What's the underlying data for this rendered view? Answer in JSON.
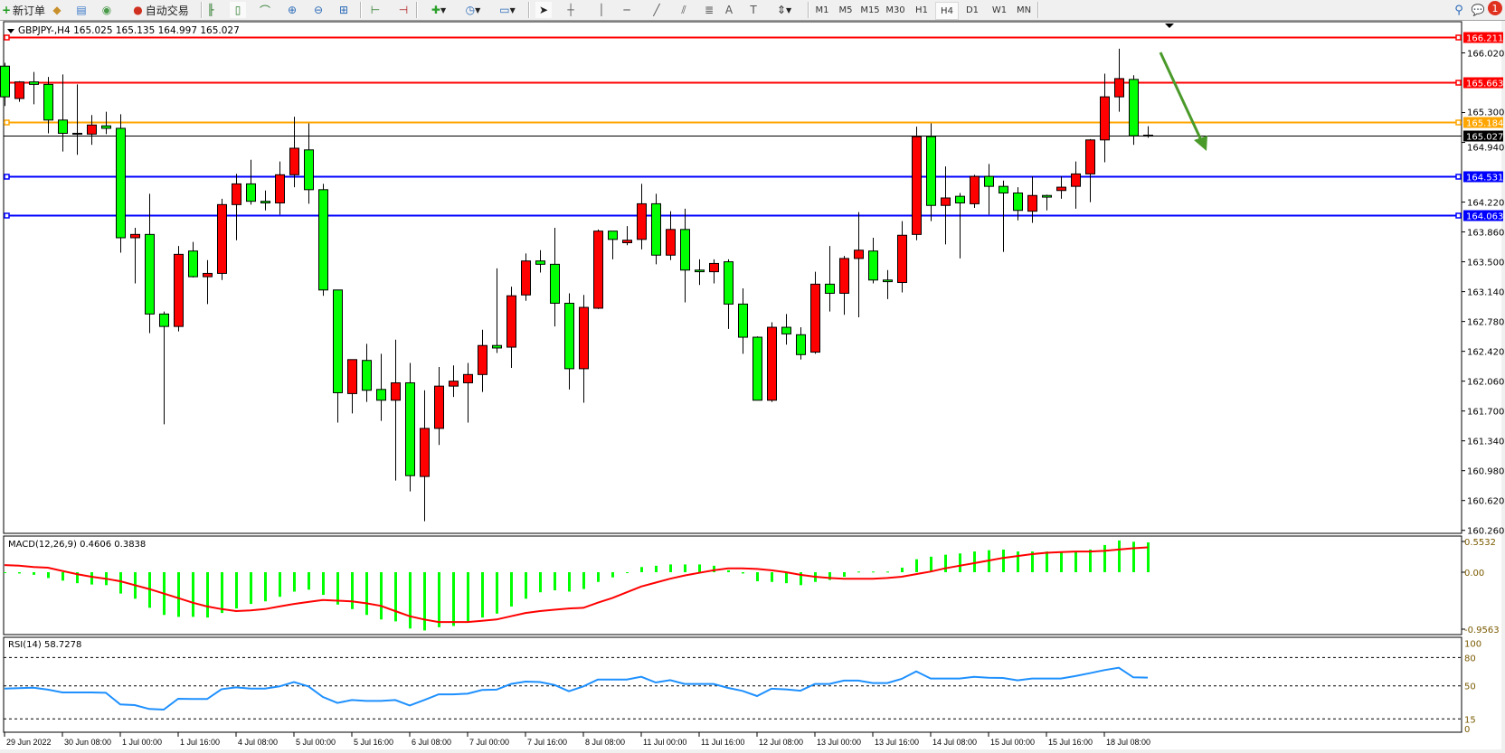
{
  "toolbar": {
    "new_order_label": "新订单",
    "auto_trading_label": "自动交易",
    "icons": [
      "new-order-icon",
      "market-watch-icon",
      "navigator-icon",
      "signals-icon",
      "auto-trading-icon",
      "bar-chart-icon",
      "candlestick-icon",
      "line-chart-icon",
      "zoom-in-icon",
      "zoom-out-icon",
      "tile-windows-icon",
      "chart-shift-icon",
      "auto-scroll-icon",
      "indicators-icon",
      "periods-icon",
      "templates-icon",
      "cursor-icon",
      "crosshair-icon",
      "vertical-line-icon",
      "horizontal-line-icon",
      "trendline-icon",
      "equidistant-channel-icon",
      "fibonacci-icon",
      "text-icon",
      "text-label-icon",
      "arrows-icon",
      "search-icon",
      "notifications-icon"
    ],
    "timeframes": [
      "M1",
      "M5",
      "M15",
      "M30",
      "H1",
      "H4",
      "D1",
      "W1",
      "MN"
    ],
    "active_timeframe": "H4",
    "notification_count": "1"
  },
  "chart_data": {
    "type": "candlestick",
    "title": "GBPJPY-,H4  165.025 165.135 164.997 165.027",
    "symbol": "GBPJPY-",
    "timeframe": "H4",
    "colors": {
      "bull": "#ff0000",
      "bear": "#00ff00",
      "background": "#ffffff"
    },
    "ylim": [
      160.26,
      166.33
    ],
    "y_ticks": [
      "166.020",
      "165.300",
      "164.940",
      "164.220",
      "163.860",
      "163.500",
      "163.140",
      "162.780",
      "162.420",
      "162.060",
      "161.700",
      "161.340",
      "160.980",
      "160.620",
      "160.260"
    ],
    "x_ticks": [
      {
        "label": "29 Jun 2022",
        "bar": 0
      },
      {
        "label": "30 Jun 08:00",
        "bar": 4
      },
      {
        "label": "1 Jul 00:00",
        "bar": 8
      },
      {
        "label": "1 Jul 16:00",
        "bar": 12
      },
      {
        "label": "4 Jul 08:00",
        "bar": 16
      },
      {
        "label": "5 Jul 00:00",
        "bar": 20
      },
      {
        "label": "5 Jul 16:00",
        "bar": 24
      },
      {
        "label": "6 Jul 08:00",
        "bar": 28
      },
      {
        "label": "7 Jul 00:00",
        "bar": 32
      },
      {
        "label": "7 Jul 16:00",
        "bar": 36
      },
      {
        "label": "8 Jul 08:00",
        "bar": 40
      },
      {
        "label": "11 Jul 00:00",
        "bar": 44
      },
      {
        "label": "11 Jul 16:00",
        "bar": 48
      },
      {
        "label": "12 Jul 08:00",
        "bar": 52
      },
      {
        "label": "13 Jul 00:00",
        "bar": 56
      },
      {
        "label": "13 Jul 16:00",
        "bar": 60
      },
      {
        "label": "14 Jul 08:00",
        "bar": 64
      },
      {
        "label": "15 Jul 00:00",
        "bar": 68
      },
      {
        "label": "15 Jul 16:00",
        "bar": 72
      },
      {
        "label": "18 Jul 08:00",
        "bar": 76
      }
    ],
    "ohlc": [
      [
        165.86,
        165.9,
        165.38,
        165.49
      ],
      [
        165.47,
        165.68,
        165.43,
        165.67
      ],
      [
        165.67,
        165.79,
        165.4,
        165.64
      ],
      [
        165.64,
        165.73,
        165.05,
        165.21
      ],
      [
        165.21,
        165.76,
        164.83,
        165.05
      ],
      [
        165.05,
        165.64,
        164.79,
        165.04
      ],
      [
        165.04,
        165.27,
        164.91,
        165.15
      ],
      [
        165.14,
        165.31,
        165.04,
        165.11
      ],
      [
        165.11,
        165.28,
        163.61,
        163.79
      ],
      [
        163.79,
        163.91,
        163.24,
        163.83
      ],
      [
        163.83,
        164.32,
        162.64,
        162.87
      ],
      [
        162.87,
        162.9,
        161.54,
        162.72
      ],
      [
        162.72,
        163.69,
        162.66,
        163.59
      ],
      [
        163.63,
        163.74,
        163.31,
        163.32
      ],
      [
        163.32,
        163.52,
        162.99,
        163.36
      ],
      [
        163.36,
        164.26,
        163.28,
        164.19
      ],
      [
        164.19,
        164.56,
        163.76,
        164.44
      ],
      [
        164.44,
        164.73,
        164.19,
        164.23
      ],
      [
        164.23,
        164.36,
        164.12,
        164.21
      ],
      [
        164.21,
        164.71,
        164.07,
        164.55
      ],
      [
        164.55,
        165.25,
        164.4,
        164.87
      ],
      [
        164.85,
        165.17,
        164.2,
        164.37
      ],
      [
        164.37,
        164.44,
        163.09,
        163.16
      ],
      [
        163.16,
        163.16,
        161.56,
        161.92
      ],
      [
        161.91,
        162.32,
        161.67,
        162.32
      ],
      [
        162.31,
        162.51,
        161.81,
        161.95
      ],
      [
        161.96,
        162.39,
        161.58,
        161.83
      ],
      [
        161.83,
        162.56,
        160.86,
        162.04
      ],
      [
        162.04,
        162.28,
        160.73,
        160.92
      ],
      [
        160.91,
        161.95,
        160.37,
        161.49
      ],
      [
        161.49,
        162.23,
        161.29,
        162.0
      ],
      [
        162.0,
        162.25,
        161.87,
        162.06
      ],
      [
        162.04,
        162.28,
        161.56,
        162.14
      ],
      [
        162.14,
        162.68,
        161.93,
        162.49
      ],
      [
        162.49,
        163.42,
        162.4,
        162.46
      ],
      [
        162.47,
        163.2,
        162.22,
        163.09
      ],
      [
        163.1,
        163.6,
        163.03,
        163.51
      ],
      [
        163.51,
        163.64,
        163.37,
        163.47
      ],
      [
        163.47,
        163.91,
        162.72,
        163.0
      ],
      [
        163.0,
        163.12,
        161.96,
        162.21
      ],
      [
        162.21,
        163.1,
        161.8,
        162.95
      ],
      [
        162.94,
        163.89,
        162.93,
        163.87
      ],
      [
        163.87,
        163.87,
        163.53,
        163.77
      ],
      [
        163.73,
        163.93,
        163.7,
        163.76
      ],
      [
        163.77,
        164.44,
        163.65,
        164.2
      ],
      [
        164.2,
        164.32,
        163.47,
        163.58
      ],
      [
        163.58,
        164.11,
        163.52,
        163.89
      ],
      [
        163.89,
        164.14,
        163.01,
        163.4
      ],
      [
        163.4,
        163.53,
        163.22,
        163.38
      ],
      [
        163.38,
        163.53,
        163.24,
        163.48
      ],
      [
        163.5,
        163.53,
        162.69,
        162.99
      ],
      [
        162.99,
        163.18,
        162.39,
        162.59
      ],
      [
        162.59,
        162.6,
        161.83,
        161.83
      ],
      [
        161.83,
        162.77,
        161.81,
        162.71
      ],
      [
        162.71,
        162.87,
        162.5,
        162.63
      ],
      [
        162.62,
        162.71,
        162.32,
        162.38
      ],
      [
        162.41,
        163.38,
        162.39,
        163.23
      ],
      [
        163.23,
        163.69,
        162.9,
        163.12
      ],
      [
        163.12,
        163.57,
        162.86,
        163.54
      ],
      [
        163.54,
        164.1,
        162.83,
        163.64
      ],
      [
        163.63,
        163.79,
        163.24,
        163.28
      ],
      [
        163.28,
        163.4,
        163.05,
        163.26
      ],
      [
        163.25,
        163.99,
        163.13,
        163.82
      ],
      [
        163.83,
        165.13,
        163.76,
        165.01
      ],
      [
        165.01,
        165.17,
        163.99,
        164.18
      ],
      [
        164.18,
        164.65,
        163.71,
        164.27
      ],
      [
        164.29,
        164.33,
        163.54,
        164.21
      ],
      [
        164.2,
        164.55,
        164.15,
        164.53
      ],
      [
        164.53,
        164.68,
        164.07,
        164.41
      ],
      [
        164.41,
        164.48,
        163.62,
        164.33
      ],
      [
        164.33,
        164.4,
        164.0,
        164.12
      ],
      [
        164.11,
        164.53,
        163.97,
        164.3
      ],
      [
        164.3,
        164.31,
        164.12,
        164.28
      ],
      [
        164.36,
        164.53,
        164.26,
        164.4
      ],
      [
        164.41,
        164.71,
        164.14,
        164.56
      ],
      [
        164.56,
        164.98,
        164.22,
        164.97
      ],
      [
        164.97,
        165.77,
        164.7,
        165.49
      ],
      [
        165.49,
        166.07,
        165.31,
        165.71
      ],
      [
        165.7,
        165.75,
        164.91,
        165.02
      ],
      [
        165.025,
        165.135,
        164.997,
        165.027
      ]
    ],
    "horizontal_lines": [
      {
        "price": 166.211,
        "label": "166.211",
        "color": "#ff0000"
      },
      {
        "price": 165.663,
        "label": "165.663",
        "color": "#ff0000"
      },
      {
        "price": 165.184,
        "label": "165.184",
        "color": "#ffa500"
      },
      {
        "price": 164.531,
        "label": "164.531",
        "color": "#0000ff"
      },
      {
        "price": 164.063,
        "label": "164.063",
        "color": "#0000ff"
      }
    ],
    "bid_line": {
      "price": 165.027,
      "label": "165.027",
      "color": "#000000"
    },
    "arrow_color": "#4a9a2a",
    "macd": {
      "label": "MACD(12,26,9) 0.4606 0.3838",
      "ylim": [
        -0.9563,
        0.5532
      ],
      "y_ticks": [
        "0.5532",
        "0.00",
        "-0.9563"
      ],
      "hist_color": "#00ff00",
      "signal_color": "#ff0000",
      "histogram": [
        -0.01,
        -0.02,
        -0.04,
        -0.09,
        -0.13,
        -0.17,
        -0.19,
        -0.2,
        -0.33,
        -0.41,
        -0.55,
        -0.66,
        -0.69,
        -0.69,
        -0.7,
        -0.63,
        -0.56,
        -0.49,
        -0.45,
        -0.38,
        -0.3,
        -0.27,
        -0.35,
        -0.5,
        -0.57,
        -0.66,
        -0.73,
        -0.76,
        -0.87,
        -0.9,
        -0.85,
        -0.83,
        -0.76,
        -0.7,
        -0.64,
        -0.53,
        -0.41,
        -0.31,
        -0.28,
        -0.3,
        -0.26,
        -0.15,
        -0.08,
        -0.01,
        0.08,
        0.1,
        0.12,
        0.12,
        0.12,
        0.1,
        0.03,
        -0.02,
        -0.14,
        -0.15,
        -0.17,
        -0.2,
        -0.15,
        -0.12,
        -0.07,
        0.01,
        0.01,
        0.01,
        0.07,
        0.2,
        0.24,
        0.27,
        0.29,
        0.32,
        0.34,
        0.35,
        0.32,
        0.32,
        0.32,
        0.32,
        0.31,
        0.35,
        0.42,
        0.49,
        0.47,
        0.4606
      ],
      "signal": [
        0.11,
        0.1,
        0.08,
        0.07,
        0.02,
        -0.03,
        -0.07,
        -0.1,
        -0.14,
        -0.2,
        -0.26,
        -0.33,
        -0.4,
        -0.47,
        -0.53,
        -0.57,
        -0.6,
        -0.59,
        -0.57,
        -0.53,
        -0.49,
        -0.46,
        -0.43,
        -0.44,
        -0.45,
        -0.48,
        -0.52,
        -0.6,
        -0.68,
        -0.73,
        -0.77,
        -0.77,
        -0.77,
        -0.75,
        -0.73,
        -0.68,
        -0.63,
        -0.6,
        -0.58,
        -0.56,
        -0.55,
        -0.47,
        -0.4,
        -0.31,
        -0.22,
        -0.16,
        -0.1,
        -0.05,
        -0.01,
        0.03,
        0.06,
        0.06,
        0.05,
        0.03,
        0,
        -0.04,
        -0.07,
        -0.09,
        -0.1,
        -0.1,
        -0.1,
        -0.09,
        -0.07,
        -0.03,
        0.01,
        0.06,
        0.1,
        0.14,
        0.18,
        0.22,
        0.25,
        0.28,
        0.3,
        0.31,
        0.32,
        0.32,
        0.33,
        0.35,
        0.37,
        0.3838
      ]
    },
    "rsi": {
      "label": "RSI(14) 58.7278",
      "ylim": [
        0,
        100
      ],
      "levels": [
        80,
        50,
        15
      ],
      "y_ticks": [
        "100",
        "80",
        "50",
        "15",
        "0"
      ],
      "color": "#1e90ff",
      "values": [
        47.1,
        47.5,
        48,
        46,
        43,
        43,
        43,
        42.6,
        30.3,
        29.6,
        25.5,
        24.9,
        36.3,
        36,
        36,
        46.5,
        48.4,
        47,
        47,
        49.4,
        53.9,
        49.4,
        38.2,
        31.9,
        35,
        34,
        34,
        35,
        29.3,
        35,
        41,
        41,
        41.7,
        45.6,
        46,
        52,
        54.5,
        54,
        51,
        44.3,
        49.4,
        56.7,
        56.7,
        56.7,
        59.6,
        53.5,
        56,
        52,
        52,
        52,
        47.8,
        44.6,
        39.2,
        46.9,
        46.3,
        44.8,
        52,
        52,
        55.5,
        55.5,
        53,
        53,
        57.4,
        65.3,
        57.7,
        57.7,
        57.7,
        59.6,
        58.6,
        58.3,
        55.8,
        57.7,
        57.7,
        57.7,
        60.3,
        63.4,
        66.6,
        69.1,
        59,
        58.73
      ]
    }
  }
}
